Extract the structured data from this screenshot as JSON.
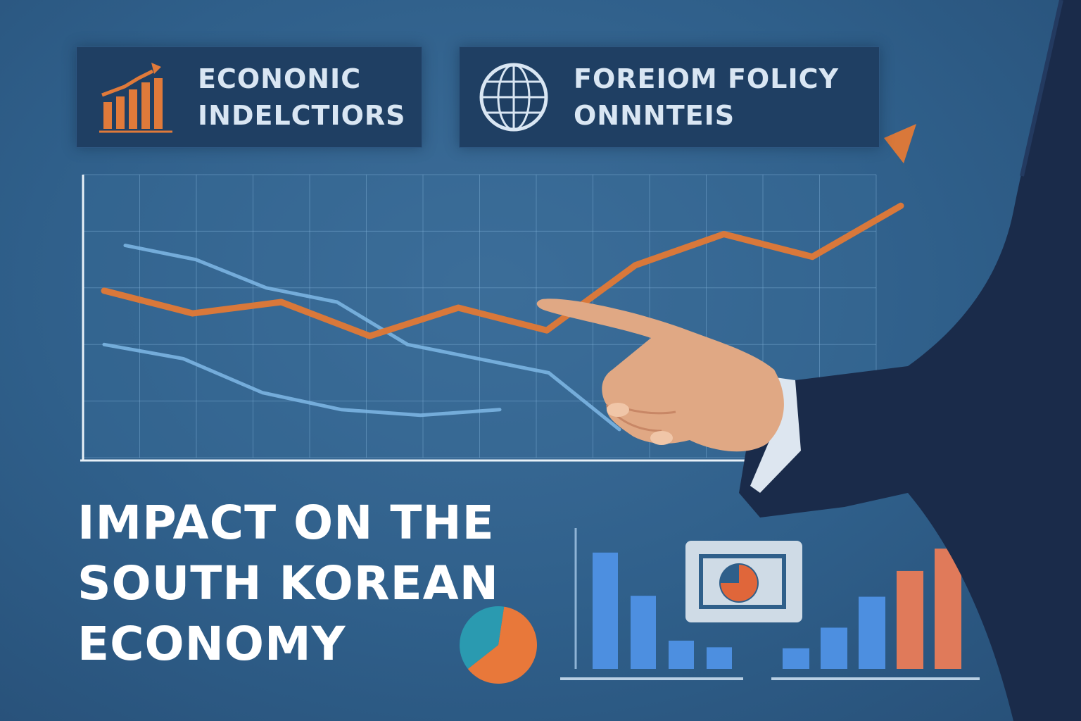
{
  "panels": {
    "left": {
      "line1": "ECONONIC",
      "line2": "INDELCTIORS",
      "icon": "bar-chart-icon"
    },
    "right": {
      "line1": "FOREIOM FOLICY",
      "line2": "ONNNTEIS",
      "icon": "globe-icon"
    }
  },
  "headline": {
    "line1": "IMPACT ON THE",
    "line2": "SOUTH KOREAN",
    "line3": "ECONOMY"
  },
  "colors": {
    "background": "#2f5f8a",
    "panel": "#1f3f63",
    "accent_orange": "#d9783a",
    "line_light_blue": "#7fb9e6",
    "bar_blue": "#4d8fe0",
    "bar_orange": "#e07a5a",
    "suit": "#1a2b4a",
    "skin": "#e0a884"
  },
  "chart_data": [
    {
      "type": "line",
      "series": [
        {
          "values": [
            54,
            46,
            50,
            38,
            48,
            40,
            63,
            74,
            66,
            84
          ]
        },
        {
          "values": [
            70,
            65,
            55,
            50,
            35,
            30,
            25,
            5
          ]
        },
        {
          "values": [
            35,
            30,
            18,
            12,
            10,
            12
          ]
        }
      ]
    },
    {
      "type": "bar",
      "values": [
        70,
        44,
        17,
        13
      ]
    },
    {
      "type": "bar",
      "values": [
        12,
        24,
        42,
        57,
        70
      ]
    },
    {
      "type": "pie",
      "values": [
        62,
        38
      ]
    }
  ]
}
